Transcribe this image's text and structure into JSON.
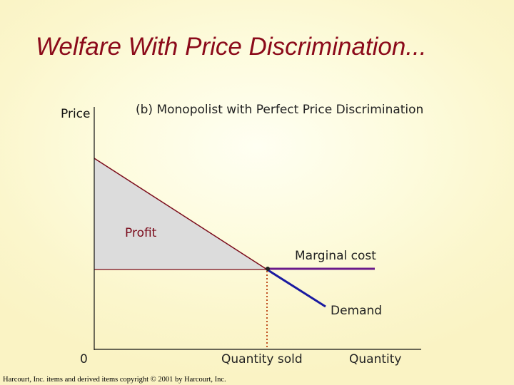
{
  "slide": {
    "title": "Welfare With Price Discrimination...",
    "subtitle": "(b) Monopolist with Perfect Price Discrimination",
    "footer": "Harcourt, Inc. items and derived items copyright © 2001 by Harcourt, Inc."
  },
  "graph": {
    "y_axis_label": "Price",
    "x_axis_label": "Quantity",
    "origin_label": "0",
    "profit_label": "Profit",
    "marginal_cost_label": "Marginal cost",
    "demand_label": "Demand",
    "quantity_sold_label": "Quantity sold",
    "colors": {
      "title": "#8b0a1a",
      "profit_area": "#dcdcdc",
      "demand_upper": "#7a0a1a",
      "demand_lower": "#1a1aa0",
      "marginal_cost": "#6a1a8a",
      "quantity_sold_dotted": "#c05020"
    }
  }
}
